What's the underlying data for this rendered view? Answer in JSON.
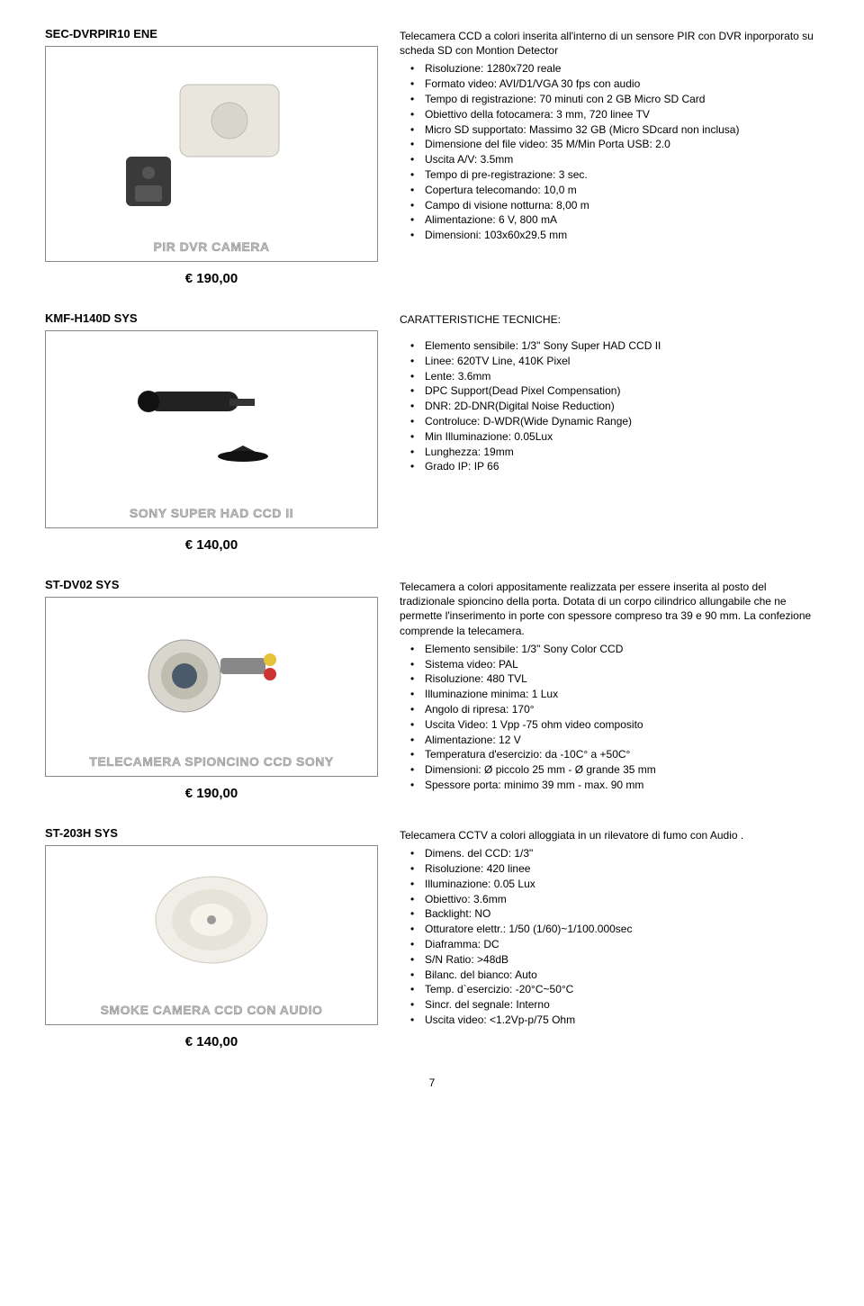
{
  "page_number": "7",
  "products": [
    {
      "sku": "SEC-DVRPIR10 ENE",
      "caption": "PIR DVR CAMERA",
      "price": "€ 190,00",
      "desc": "Telecamera CCD a colori inserita all'interno di un sensore PIR con DVR inporporato su scheda SD con Montion Detector",
      "specs": [
        "Risoluzione: 1280x720 reale",
        "Formato video: AVI/D1/VGA 30 fps con audio",
        "Tempo di registrazione: 70 minuti con 2 GB Micro SD Card",
        "Obiettivo della fotocamera: 3 mm, 720 linee TV",
        "Micro SD supportato: Massimo 32 GB (Micro SDcard non inclusa)",
        "Dimensione del file video: 35 M/Min Porta USB: 2.0",
        "Uscita A/V: 3.5mm",
        "Tempo di pre-registrazione: 3 sec.",
        "Copertura telecomando: 10,0 m",
        "Campo di visione notturna: 8,00 m",
        "Alimentazione: 6 V, 800 mA",
        "Dimensioni: 103x60x29.5 mm"
      ]
    },
    {
      "sku": "KMF-H140D SYS",
      "caption": "SONY SUPER HAD CCD II",
      "price": "€ 140,00",
      "section_title": "CARATTERISTICHE TECNICHE:",
      "specs": [
        "Elemento sensibile: 1/3\" Sony Super HAD CCD II",
        "Linee: 620TV Line, 410K Pixel",
        "Lente: 3.6mm",
        "DPC Support(Dead Pixel Compensation)",
        "DNR: 2D-DNR(Digital Noise Reduction)",
        "Controluce: D-WDR(Wide Dynamic Range)",
        "Min Illuminazione: 0.05Lux",
        "Lunghezza: 19mm",
        "Grado IP: IP 66"
      ]
    },
    {
      "sku": "ST-DV02 SYS",
      "caption": "TELECAMERA SPIONCINO CCD SONY",
      "price": "€ 190,00",
      "desc": "Telecamera a colori appositamente realizzata per essere inserita al posto del tradizionale spioncino della porta. Dotata di un corpo cilindrico allungabile che ne permette l'inserimento in porte con spessore compreso tra 39 e 90 mm. La confezione comprende la telecamera.",
      "specs": [
        "Elemento sensibile: 1/3\" Sony Color CCD",
        "Sistema video: PAL",
        "Risoluzione: 480 TVL",
        "Illuminazione minima: 1 Lux",
        "Angolo di ripresa: 170°",
        "Uscita Video: 1 Vpp -75 ohm video composito",
        "Alimentazione: 12 V",
        "Temperatura d'esercizio: da -10C° a +50C°",
        "Dimensioni: Ø piccolo 25 mm - Ø grande 35 mm",
        "Spessore porta: minimo 39 mm - max. 90 mm"
      ]
    },
    {
      "sku": "ST-203H SYS",
      "caption": "SMOKE CAMERA CCD CON AUDIO",
      "price": "€ 140,00",
      "desc": "Telecamera CCTV a colori alloggiata in un rilevatore di fumo con Audio .",
      "specs": [
        "Dimens. del CCD: 1/3\"",
        "Risoluzione: 420 linee",
        "Illuminazione: 0.05 Lux",
        "Obiettivo: 3.6mm",
        "Backlight: NO",
        "Otturatore elettr.: 1/50 (1/60)~1/100.000sec",
        "Diaframma: DC",
        "S/N Ratio: >48dB",
        "Bilanc. del bianco: Auto",
        "Temp. d`esercizio: -20°C~50°C",
        "Sincr. del segnale: Interno",
        "Uscita video: <1.2Vp-p/75 Ohm"
      ]
    }
  ]
}
